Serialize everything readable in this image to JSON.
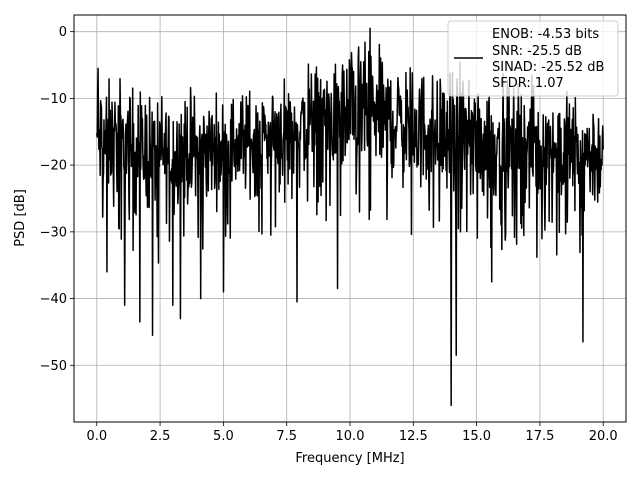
{
  "chart_data": {
    "type": "line",
    "title": "",
    "xlabel": "Frequency [MHz]",
    "ylabel": "PSD [dB]",
    "xlim": [
      -0.9,
      20.9
    ],
    "ylim": [
      -58.5,
      2.5
    ],
    "xticks": [
      0.0,
      2.5,
      5.0,
      7.5,
      10.0,
      12.5,
      15.0,
      17.5,
      20.0
    ],
    "xtick_labels": [
      "0.0",
      "2.5",
      "5.0",
      "7.5",
      "10.0",
      "12.5",
      "15.0",
      "17.5",
      "20.0"
    ],
    "yticks": [
      0,
      -10,
      -20,
      -30,
      -40,
      -50
    ],
    "ytick_labels": [
      "0",
      "−10",
      "−20",
      "−30",
      "−40",
      "−50"
    ],
    "grid": true,
    "legend_position": "top-right",
    "series": [
      {
        "name": "ENOB: -4.53 bits\nSNR: -25.5 dB\nSINAD: -25.52 dB\nSFDR: 1.07",
        "color": "#000000",
        "x_range": [
          0.0,
          20.0
        ],
        "num_points": 1200,
        "trend": {
          "x": [
            0.0,
            2.5,
            5.0,
            7.5,
            9.0,
            10.5,
            12.5,
            15.0,
            17.5,
            20.0
          ],
          "top": [
            -6,
            -8,
            -9,
            -5,
            -3,
            -1,
            -4,
            -6,
            -7,
            -9
          ],
          "bottom": [
            -26,
            -29,
            -26,
            -25,
            -24,
            -22,
            -25,
            -27,
            -28,
            -28
          ]
        },
        "notable_minima": [
          {
            "x": 0.4,
            "y": -36
          },
          {
            "x": 1.1,
            "y": -41
          },
          {
            "x": 1.7,
            "y": -43.5
          },
          {
            "x": 2.2,
            "y": -45.5
          },
          {
            "x": 3.0,
            "y": -41
          },
          {
            "x": 3.3,
            "y": -43
          },
          {
            "x": 4.1,
            "y": -40
          },
          {
            "x": 5.0,
            "y": -39
          },
          {
            "x": 7.9,
            "y": -40.5
          },
          {
            "x": 9.5,
            "y": -38.5
          },
          {
            "x": 14.0,
            "y": -56
          },
          {
            "x": 14.2,
            "y": -48.5
          },
          {
            "x": 15.6,
            "y": -37.5
          },
          {
            "x": 19.2,
            "y": -46.5
          }
        ],
        "notable_maxima": [
          {
            "x": 0.05,
            "y": -5.5
          },
          {
            "x": 10.8,
            "y": 0.5
          }
        ]
      }
    ],
    "legend": {
      "lines": [
        "ENOB: -4.53 bits",
        "SNR: -25.5 dB",
        "SINAD: -25.52 dB",
        "SFDR: 1.07"
      ]
    }
  }
}
